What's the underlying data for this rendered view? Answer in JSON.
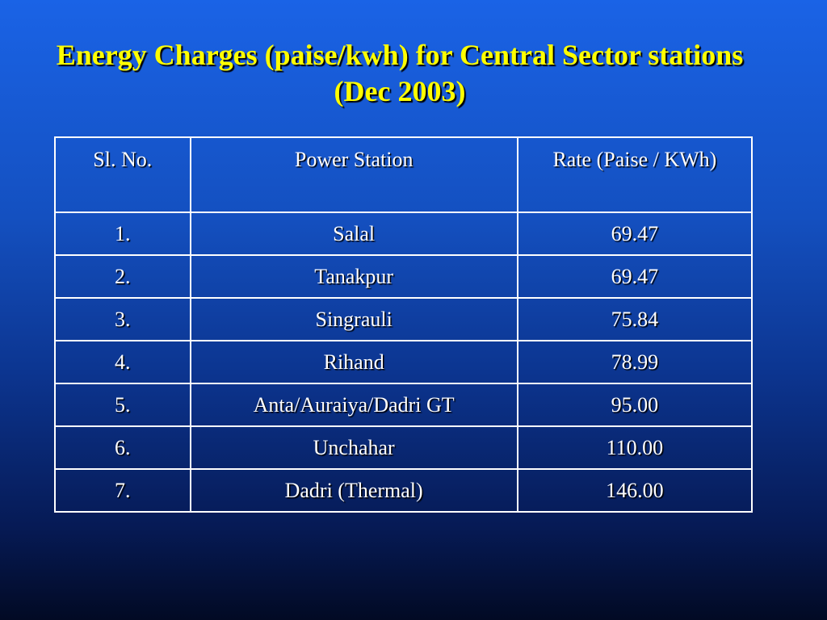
{
  "slide": {
    "title": "Energy Charges (paise/kwh) for Central Sector stations (Dec 2003)"
  },
  "table": {
    "headers": [
      "Sl. No.",
      "Power Station",
      "Rate (Paise / KWh)"
    ],
    "rows": [
      {
        "sl": "1.",
        "station": "Salal",
        "rate": "69.47"
      },
      {
        "sl": "2.",
        "station": "Tanakpur",
        "rate": "69.47"
      },
      {
        "sl": "3.",
        "station": "Singrauli",
        "rate": "75.84"
      },
      {
        "sl": "4.",
        "station": "Rihand",
        "rate": "78.99"
      },
      {
        "sl": "5.",
        "station": "Anta/Auraiya/Dadri GT",
        "rate": "95.00"
      },
      {
        "sl": "6.",
        "station": "Unchahar",
        "rate": "110.00"
      },
      {
        "sl": "7.",
        "station": "Dadri (Thermal)",
        "rate": "146.00"
      }
    ]
  },
  "colors": {
    "title": "#ffff00",
    "text": "#ffffff",
    "background_top": "#1a63e6",
    "background_bottom": "#020a24"
  }
}
